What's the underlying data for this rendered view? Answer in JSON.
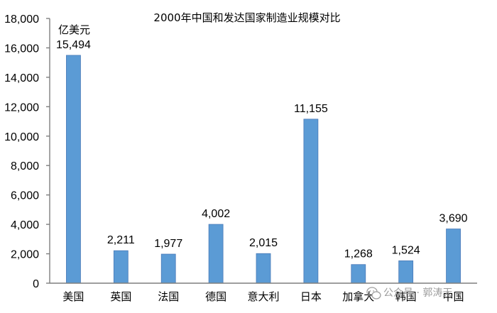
{
  "chart_data": {
    "type": "bar",
    "title": "2000年中国和发达国家制造业规模对比",
    "ylabel": "亿美元",
    "xlabel": "",
    "ylim": [
      0,
      18000
    ],
    "yticks": [
      "0",
      "2,000",
      "4,000",
      "6,000",
      "8,000",
      "10,000",
      "12,000",
      "14,000",
      "16,000",
      "18,000"
    ],
    "categories": [
      "美国",
      "英国",
      "法国",
      "德国",
      "意大利",
      "日本",
      "加拿大",
      "韩国",
      "中国"
    ],
    "values": [
      15494,
      2211,
      1977,
      4002,
      2015,
      11155,
      1268,
      1524,
      3690
    ],
    "value_labels": [
      "15,494",
      "2,211",
      "1,977",
      "4,002",
      "2,015",
      "11,155",
      "1,268",
      "1,524",
      "3,690"
    ],
    "bar_color": "#5b9bd5",
    "grid": false,
    "legend": "none"
  },
  "watermark": {
    "icon": "wechat-icon",
    "text": "公众号 · 郭涛天"
  }
}
